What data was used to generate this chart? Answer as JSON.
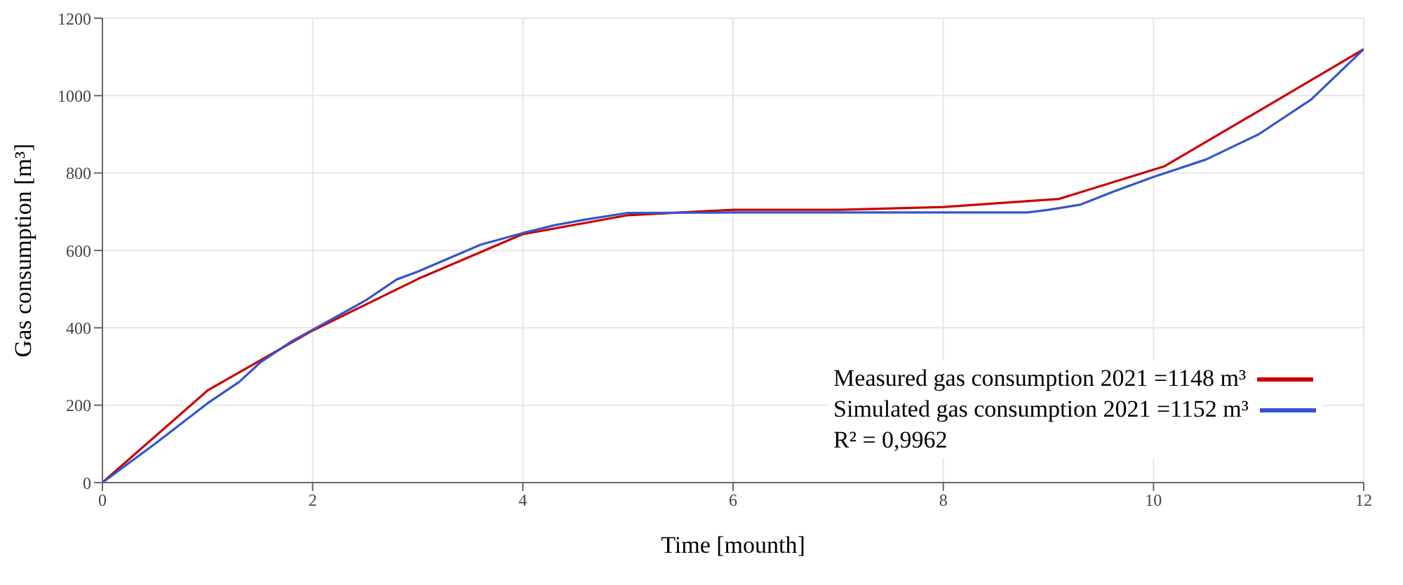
{
  "chart_data": {
    "type": "line",
    "xlabel": "Time [mounth]",
    "ylabel": "Gas consumption [m³]",
    "xlim": [
      0,
      12
    ],
    "xticks": [
      0,
      2,
      4,
      6,
      8,
      10,
      12
    ],
    "ylim": [
      0,
      1200
    ],
    "yticks": [
      0,
      200,
      400,
      600,
      800,
      1000,
      1200
    ],
    "grid": true,
    "legend": "bottom right",
    "marker": "none",
    "line_style": "solid",
    "annotations": [
      "R² = 0,9962"
    ],
    "series": [
      {
        "name": "Measured gas consumption 2021 =1148 m³",
        "color": "#cc0000",
        "x": [
          0,
          1,
          2,
          3,
          4,
          5,
          6,
          7,
          8,
          9.1,
          10.1,
          11,
          12
        ],
        "values": [
          0,
          238,
          393,
          526,
          642,
          691,
          705,
          705,
          712,
          733,
          817,
          960,
          1120
        ]
      },
      {
        "name": "Simulated gas consumption 2021 =1152 m³",
        "color": "#3355cc",
        "x": [
          0,
          0.5,
          1,
          1.3,
          1.5,
          1.8,
          2,
          2.5,
          2.8,
          3,
          3.3,
          3.6,
          4,
          4.3,
          4.6,
          5,
          6,
          8.8,
          9,
          9.3,
          9.6,
          10,
          10.5,
          11,
          11.5,
          12
        ],
        "values": [
          0,
          100,
          205,
          260,
          310,
          365,
          395,
          470,
          525,
          545,
          580,
          615,
          645,
          665,
          680,
          697,
          698,
          698,
          705,
          718,
          750,
          790,
          835,
          900,
          990,
          1120
        ]
      }
    ]
  }
}
